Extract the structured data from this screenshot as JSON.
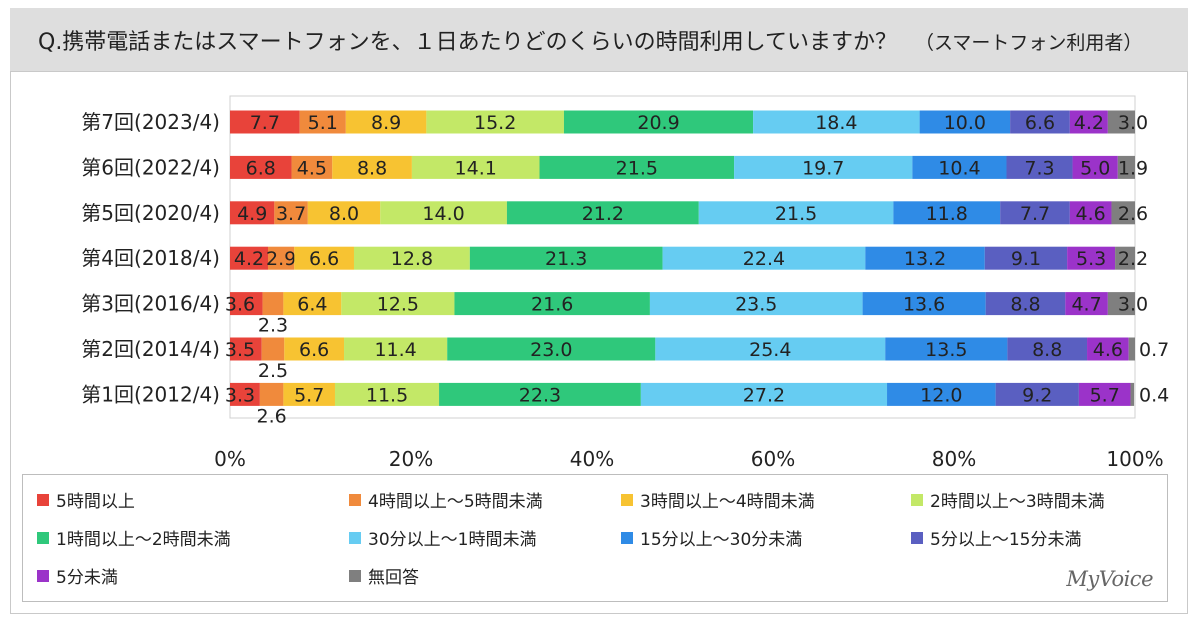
{
  "title": {
    "question": "Q.携帯電話またはスマートフォンを、１日あたりどのくらいの時間利用していますか？",
    "subtitle": "（スマートフォン利用者）"
  },
  "brand": "MyVoice",
  "chart_data": {
    "type": "bar",
    "orientation": "horizontal",
    "stacked": true,
    "percent": true,
    "xlim": [
      0,
      100
    ],
    "x_ticks": [
      "0%",
      "20%",
      "40%",
      "60%",
      "80%",
      "100%"
    ],
    "categories": [
      "第7回(2023/4)",
      "第6回(2022/4)",
      "第5回(2020/4)",
      "第4回(2018/4)",
      "第3回(2016/4)",
      "第2回(2014/4)",
      "第1回(2012/4)"
    ],
    "legend_position": "bottom",
    "series": [
      {
        "name": "5時間以上",
        "color": "#e8433a",
        "values": [
          7.7,
          6.8,
          4.9,
          4.2,
          3.6,
          3.5,
          3.3
        ]
      },
      {
        "name": "4時間以上～5時間未満",
        "color": "#f08a3c",
        "values": [
          5.1,
          4.5,
          3.7,
          2.9,
          2.3,
          2.5,
          2.6
        ]
      },
      {
        "name": "3時間以上～4時間未満",
        "color": "#f7c332",
        "values": [
          8.9,
          8.8,
          8.0,
          6.6,
          6.4,
          6.6,
          5.7
        ]
      },
      {
        "name": "2時間以上～3時間未満",
        "color": "#c3e867",
        "values": [
          15.2,
          14.1,
          14.0,
          12.8,
          12.5,
          11.4,
          11.5
        ]
      },
      {
        "name": "1時間以上～2時間未満",
        "color": "#2fc87b",
        "values": [
          20.9,
          21.5,
          21.2,
          21.3,
          21.6,
          23.0,
          22.3
        ]
      },
      {
        "name": "30分以上～1時間未満",
        "color": "#66ccf2",
        "values": [
          18.4,
          19.7,
          21.5,
          22.4,
          23.5,
          25.4,
          27.2
        ]
      },
      {
        "name": "15分以上～30分未満",
        "color": "#2f8be6",
        "values": [
          10.0,
          10.4,
          11.8,
          13.2,
          13.6,
          13.5,
          12.0
        ]
      },
      {
        "name": "5分以上～15分未満",
        "color": "#5a5fc1",
        "values": [
          6.6,
          7.3,
          7.7,
          9.1,
          8.8,
          8.8,
          9.2
        ]
      },
      {
        "name": "5分未満",
        "color": "#9b33c9",
        "values": [
          4.2,
          5.0,
          4.6,
          5.3,
          4.7,
          4.6,
          5.7
        ]
      },
      {
        "name": "無回答",
        "color": "#7f7f7f",
        "values": [
          3.0,
          1.9,
          2.6,
          2.2,
          3.0,
          0.7,
          0.4
        ]
      }
    ]
  }
}
